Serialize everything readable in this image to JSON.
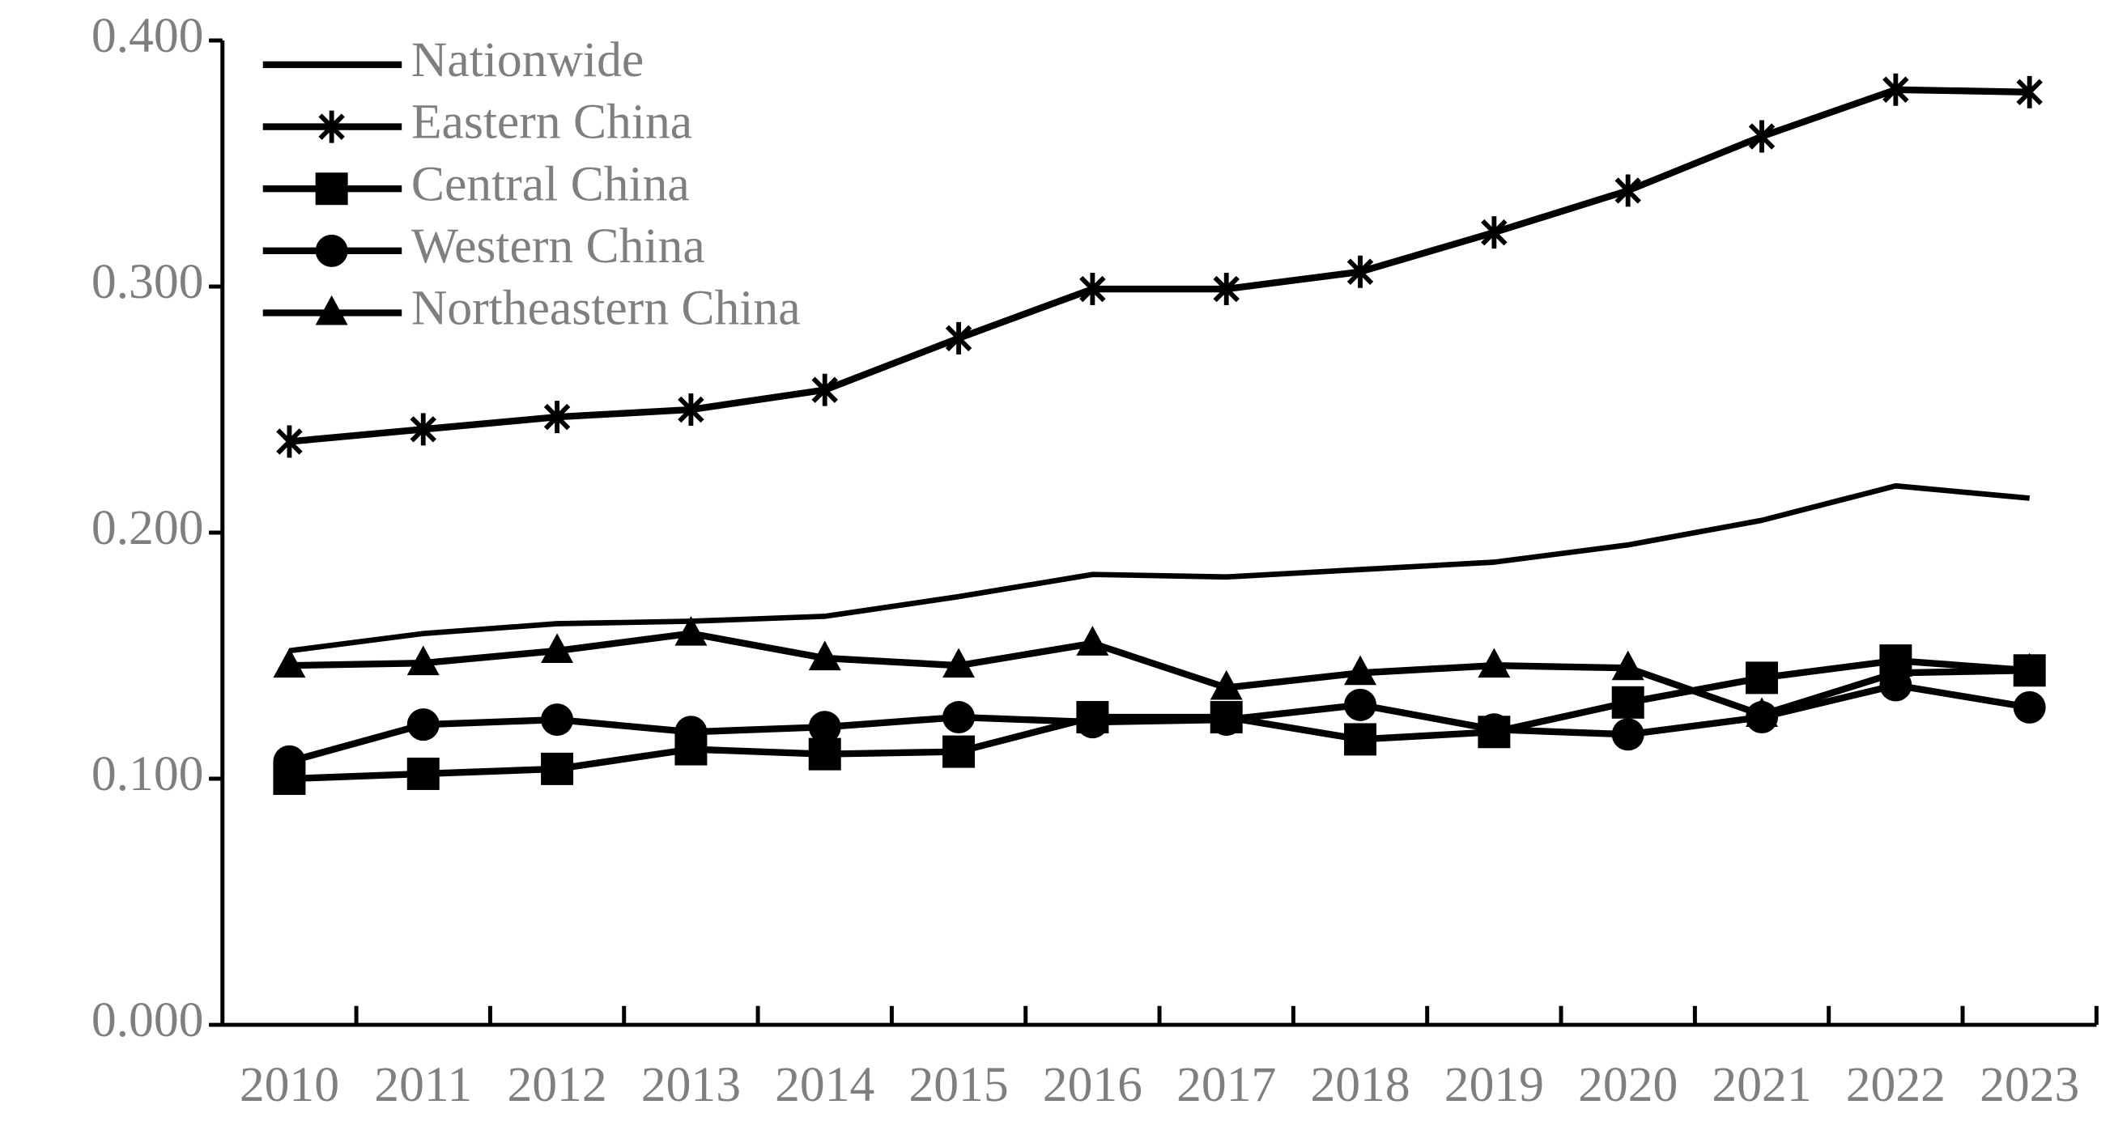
{
  "chart_data": {
    "type": "line",
    "categories": [
      "2010",
      "2011",
      "2012",
      "2013",
      "2014",
      "2015",
      "2016",
      "2017",
      "2018",
      "2019",
      "2020",
      "2021",
      "2022",
      "2023"
    ],
    "series": [
      {
        "name": "Nationwide",
        "color": "#000000",
        "marker": "none",
        "values": [
          0.152,
          0.159,
          0.163,
          0.164,
          0.166,
          0.174,
          0.183,
          0.182,
          0.185,
          0.188,
          0.195,
          0.205,
          0.219,
          0.214
        ]
      },
      {
        "name": "Eastern China",
        "color": "#000000",
        "marker": "asterisk",
        "values": [
          0.237,
          0.242,
          0.247,
          0.25,
          0.258,
          0.279,
          0.299,
          0.299,
          0.306,
          0.322,
          0.339,
          0.361,
          0.38,
          0.379
        ]
      },
      {
        "name": "Central China",
        "color": "#000000",
        "marker": "square",
        "values": [
          0.1,
          0.102,
          0.104,
          0.112,
          0.11,
          0.111,
          0.125,
          0.125,
          0.116,
          0.119,
          0.131,
          0.141,
          0.148,
          0.144
        ]
      },
      {
        "name": "Western China",
        "color": "#000000",
        "marker": "circle",
        "values": [
          0.107,
          0.122,
          0.124,
          0.119,
          0.121,
          0.125,
          0.123,
          0.124,
          0.13,
          0.12,
          0.118,
          0.125,
          0.138,
          0.129
        ]
      },
      {
        "name": "Northeastern China",
        "color": "#000000",
        "marker": "triangle",
        "values": [
          0.146,
          0.147,
          0.152,
          0.159,
          0.149,
          0.146,
          0.155,
          0.137,
          0.143,
          0.146,
          0.145,
          0.126,
          0.143,
          0.144
        ]
      }
    ],
    "ylim": [
      0,
      0.4
    ],
    "yticks": [
      {
        "value": 0,
        "label": "0.000"
      },
      {
        "value": 0.1,
        "label": "0.100"
      },
      {
        "value": 0.2,
        "label": "0.200"
      },
      {
        "value": 0.3,
        "label": "0.300"
      },
      {
        "value": 0.4,
        "label": "0.400"
      }
    ],
    "grid": false,
    "legend": "upper-left"
  }
}
